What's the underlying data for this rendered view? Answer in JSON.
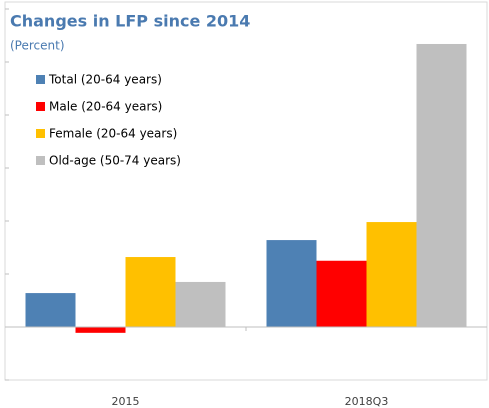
{
  "chart_data": {
    "type": "bar",
    "title": "Changes in LFP since 2014",
    "subtitle": "(Percent)",
    "categories": [
      "2015",
      "2018Q3"
    ],
    "series": [
      {
        "name": "Total (20-64 years)",
        "color": "#4e81b4",
        "values": [
          0.64,
          1.64
        ]
      },
      {
        "name": "Male (20-64 years)",
        "color": "#ff0000",
        "values": [
          -0.11,
          1.25
        ]
      },
      {
        "name": "Female (20-64 years)",
        "color": "#ffc000",
        "values": [
          1.32,
          1.98
        ]
      },
      {
        "name": "Old-age (50-74 years)",
        "color": "#bfbfbf",
        "values": [
          0.85,
          5.34
        ]
      }
    ],
    "ylim": [
      -1,
      6
    ],
    "yticks": [
      -1,
      0,
      1,
      2,
      3,
      4,
      5,
      6
    ],
    "legend": "upper left"
  }
}
